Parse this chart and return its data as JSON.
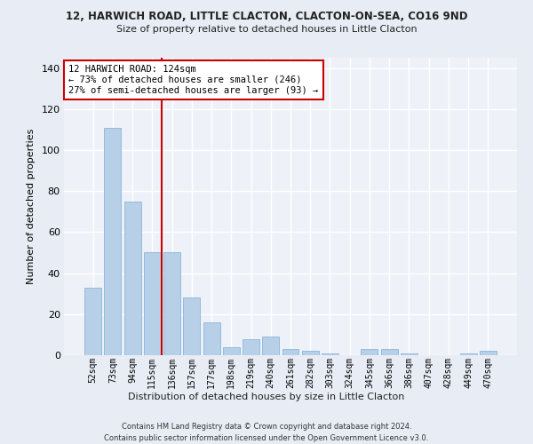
{
  "title1": "12, HARWICH ROAD, LITTLE CLACTON, CLACTON-ON-SEA, CO16 9ND",
  "title2": "Size of property relative to detached houses in Little Clacton",
  "xlabel": "Distribution of detached houses by size in Little Clacton",
  "ylabel": "Number of detached properties",
  "categories": [
    "52sqm",
    "73sqm",
    "94sqm",
    "115sqm",
    "136sqm",
    "157sqm",
    "177sqm",
    "198sqm",
    "219sqm",
    "240sqm",
    "261sqm",
    "282sqm",
    "303sqm",
    "324sqm",
    "345sqm",
    "366sqm",
    "386sqm",
    "407sqm",
    "428sqm",
    "449sqm",
    "470sqm"
  ],
  "values": [
    33,
    111,
    75,
    50,
    50,
    28,
    16,
    4,
    8,
    9,
    3,
    2,
    1,
    0,
    3,
    3,
    1,
    0,
    0,
    1,
    2
  ],
  "bar_color": "#b8cfe8",
  "bar_edge_color": "#7aadd4",
  "vline_x": 3.5,
  "vline_color": "#cc0000",
  "annotation_text": "12 HARWICH ROAD: 124sqm\n← 73% of detached houses are smaller (246)\n27% of semi-detached houses are larger (93) →",
  "annotation_box_color": "#ffffff",
  "annotation_box_edge_color": "#cc0000",
  "ylim": [
    0,
    145
  ],
  "yticks": [
    0,
    20,
    40,
    60,
    80,
    100,
    120,
    140
  ],
  "footer": "Contains HM Land Registry data © Crown copyright and database right 2024.\nContains public sector information licensed under the Open Government Licence v3.0.",
  "bg_color": "#e8edf5",
  "plot_bg_color": "#eef2f8",
  "grid_color": "#ffffff"
}
